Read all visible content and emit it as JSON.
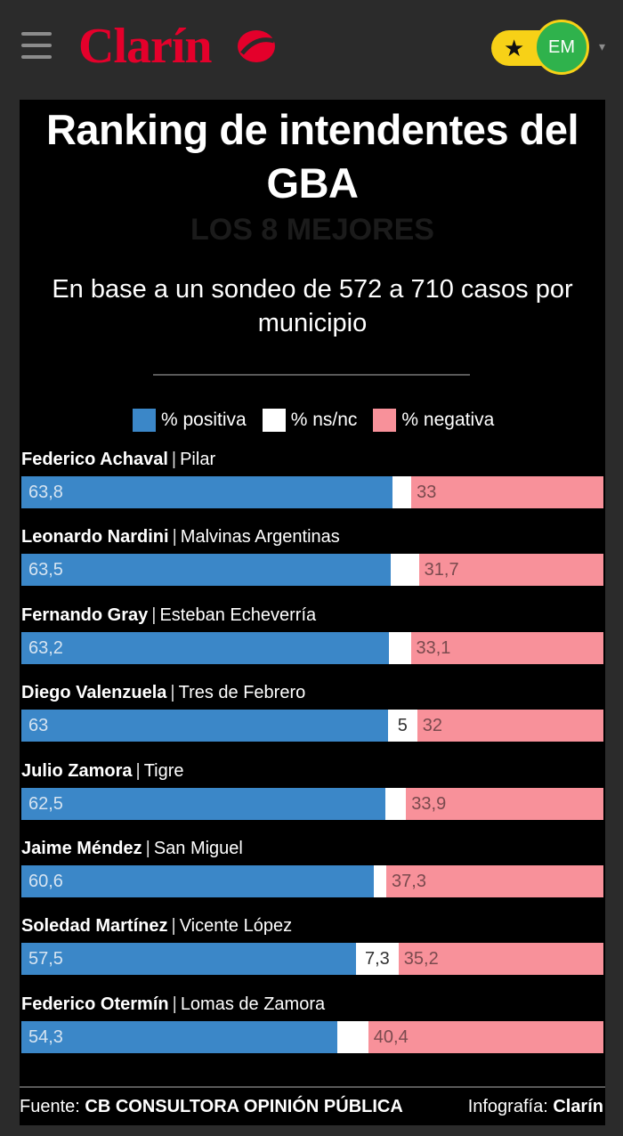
{
  "header": {
    "logo_text": "Clarín",
    "avatar_initials": "EM",
    "star": "★",
    "caret": "▾"
  },
  "colors": {
    "positive": "#3b87c8",
    "nsnc": "#ffffff",
    "negative": "#f8919a",
    "brand": "#e4002b",
    "accent": "#f7d117"
  },
  "chart_data": {
    "type": "bar",
    "orientation": "horizontal-stacked-100",
    "title": "Ranking de intendentes del GBA",
    "subtitle": "LOS 8 MEJORES",
    "description": "En base a un sondeo de 572 a 710 casos por municipio",
    "legend": [
      "% positiva",
      "% ns/nc",
      "% negativa"
    ],
    "rows": [
      {
        "name": "Federico Achaval",
        "municipio": "Pilar",
        "positive": 63.8,
        "nsnc": 3.2,
        "negative": 33,
        "positive_label": "63,8",
        "nsnc_label": "",
        "negative_label": "33"
      },
      {
        "name": "Leonardo Nardini",
        "municipio": "Malvinas Argentinas",
        "positive": 63.5,
        "nsnc": 4.8,
        "negative": 31.7,
        "positive_label": "63,5",
        "nsnc_label": "",
        "negative_label": "31,7"
      },
      {
        "name": "Fernando Gray",
        "municipio": "Esteban Echeverría",
        "positive": 63.2,
        "nsnc": 3.7,
        "negative": 33.1,
        "positive_label": "63,2",
        "nsnc_label": "",
        "negative_label": "33,1"
      },
      {
        "name": "Diego Valenzuela",
        "municipio": "Tres de Febrero",
        "positive": 63,
        "nsnc": 5,
        "negative": 32,
        "positive_label": "63",
        "nsnc_label": "5",
        "negative_label": "32"
      },
      {
        "name": "Julio Zamora",
        "municipio": "Tigre",
        "positive": 62.5,
        "nsnc": 3.6,
        "negative": 33.9,
        "positive_label": "62,5",
        "nsnc_label": "",
        "negative_label": "33,9"
      },
      {
        "name": "Jaime Méndez",
        "municipio": "San Miguel",
        "positive": 60.6,
        "nsnc": 2.1,
        "negative": 37.3,
        "positive_label": "60,6",
        "nsnc_label": "",
        "negative_label": "37,3"
      },
      {
        "name": "Soledad Martínez",
        "municipio": "Vicente López",
        "positive": 57.5,
        "nsnc": 7.3,
        "negative": 35.2,
        "positive_label": "57,5",
        "nsnc_label": "7,3",
        "negative_label": "35,2"
      },
      {
        "name": "Federico Otermín",
        "municipio": "Lomas de Zamora",
        "positive": 54.3,
        "nsnc": 5.3,
        "negative": 40.4,
        "positive_label": "54,3",
        "nsnc_label": "",
        "negative_label": "40,4"
      }
    ],
    "source_prefix": "Fuente:",
    "source": "CB CONSULTORA OPINIÓN PÚBLICA",
    "credit_prefix": "Infografía:",
    "credit": "Clarín"
  }
}
